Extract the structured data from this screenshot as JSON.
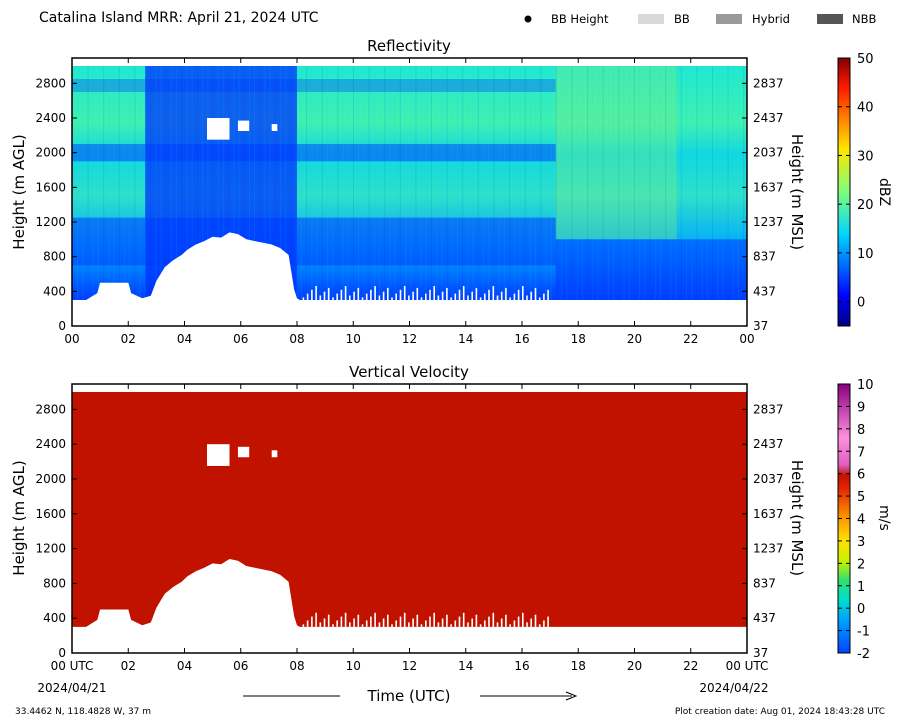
{
  "figure": {
    "title": "Catalina Island MRR:  April 21, 2024 UTC",
    "legend": [
      {
        "label": "BB Height",
        "symbol": "dot",
        "color": "#000000"
      },
      {
        "label": "BB",
        "symbol": "box",
        "color": "#d9d9d9"
      },
      {
        "label": "Hybrid",
        "symbol": "box",
        "color": "#9a9a9a"
      },
      {
        "label": "NBB",
        "symbol": "box",
        "color": "#555555"
      }
    ],
    "xlabel": "Time (UTC)",
    "start_date": "2024/04/21",
    "end_date": "2024/04/22",
    "location": "33.4462 N, 118.4828 W, 37 m",
    "creation_date": "Plot creation date: Aug 01, 2024 18:43:28 UTC"
  },
  "chart_data": [
    {
      "type": "heatmap",
      "title": "Reflectivity",
      "ylabel": "Height (m AGL)",
      "ylabel_right": "Height (m MSL)",
      "x_ticks": [
        "00",
        "02",
        "04",
        "06",
        "08",
        "10",
        "12",
        "14",
        "16",
        "18",
        "20",
        "22",
        "00"
      ],
      "xlim": [
        0,
        24
      ],
      "y_ticks": [
        0,
        400,
        800,
        1200,
        1600,
        2000,
        2400,
        2800
      ],
      "y_ticks_right": [
        "37",
        "437",
        "837",
        "1237",
        "1637",
        "2037",
        "2437",
        "2837"
      ],
      "ylim": [
        0,
        3000
      ],
      "colorbar": {
        "label": "dBZ",
        "min": -5,
        "max": 50,
        "ticks": [
          "0",
          "10",
          "20",
          "30",
          "40",
          "50"
        ],
        "tick_values": [
          0,
          10,
          20,
          30,
          40,
          50
        ]
      },
      "bands": [
        {
          "name": "main",
          "x": [
            0,
            2.6,
            2.7,
            7.9,
            8.0,
            17.1,
            17.3,
            21.5,
            21.6,
            24
          ],
          "y": [
            300,
            300,
            300,
            300,
            300,
            300,
            300,
            300,
            300,
            300
          ],
          "y_top": 3000,
          "value": "10 to 22"
        }
      ]
    },
    {
      "type": "heatmap",
      "title": "Vertical Velocity",
      "ylabel": "Height (m AGL)",
      "ylabel_right": "Height (m MSL)",
      "x_ticks": [
        "00 UTC",
        "02",
        "04",
        "06",
        "08",
        "10",
        "12",
        "14",
        "16",
        "18",
        "20",
        "22",
        "00 UTC"
      ],
      "xlim": [
        0,
        24
      ],
      "y_ticks": [
        0,
        400,
        800,
        1200,
        1600,
        2000,
        2400,
        2800
      ],
      "y_ticks_right": [
        "37",
        "437",
        "837",
        "1237",
        "1637",
        "2037",
        "2437",
        "2837"
      ],
      "ylim": [
        0,
        3000
      ],
      "colorbar": {
        "label": "m/s",
        "min": -2,
        "max": 10,
        "ticks": [
          "-2",
          "-1",
          "0",
          "1",
          "2",
          "3",
          "4",
          "5",
          "6",
          "7",
          "8",
          "9",
          "10"
        ],
        "tick_values": [
          -2,
          -1,
          0,
          1,
          2,
          3,
          4,
          5,
          6,
          7,
          8,
          9,
          10
        ]
      },
      "field_value": 6
    }
  ],
  "no_data_profile": {
    "x": [
      0,
      0.5,
      0.9,
      1.0,
      1.5,
      2.0,
      2.1,
      2.5,
      2.8,
      3.0,
      3.3,
      3.6,
      3.9,
      4.1,
      4.4,
      4.7,
      5.0,
      5.3,
      5.6,
      5.9,
      6.2,
      6.5,
      6.8,
      7.1,
      7.4,
      7.7,
      7.8,
      7.9,
      8.0,
      8.1,
      24
    ],
    "y": [
      300,
      300,
      380,
      500,
      500,
      500,
      380,
      320,
      350,
      520,
      680,
      760,
      820,
      880,
      940,
      980,
      1030,
      1020,
      1080,
      1060,
      1000,
      980,
      960,
      940,
      900,
      820,
      620,
      420,
      320,
      300,
      300
    ]
  },
  "no_data_patches": [
    {
      "x": [
        4.8,
        5.6
      ],
      "y": [
        2150,
        2400
      ]
    },
    {
      "x": [
        5.9,
        6.3
      ],
      "y": [
        2250,
        2370
      ]
    },
    {
      "x": [
        7.1,
        7.3
      ],
      "y": [
        2250,
        2330
      ]
    }
  ],
  "colors": {
    "velocity_field": "#c11200",
    "no_data": "#ffffff",
    "frame": "#000000"
  }
}
